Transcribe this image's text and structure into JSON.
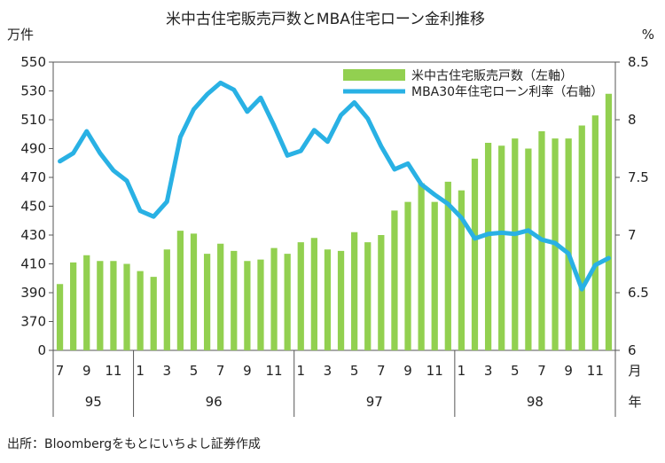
{
  "chart_data": {
    "type": "bar",
    "title": "米中古住宅販売戸数とMBA住宅ローン金利推移",
    "left_unit": "万件",
    "right_unit": "%",
    "x_unit_line1": "月",
    "x_unit_line2": "年",
    "source": "出所：Bloombergをもとにいちよし証券作成",
    "ylim_left": [
      0,
      550
    ],
    "left_tick_labels": [
      "0",
      "370",
      "390",
      "410",
      "430",
      "450",
      "470",
      "490",
      "510",
      "530",
      "550"
    ],
    "ylim_right": [
      6,
      8.5
    ],
    "right_tick_labels": [
      "6",
      "6.5",
      "7",
      "7.5",
      "8",
      "8.5"
    ],
    "month_labels": [
      "7",
      "9",
      "11",
      "1",
      "3",
      "5",
      "7",
      "9",
      "11",
      "1",
      "3",
      "5",
      "7",
      "9",
      "11",
      "1",
      "3",
      "5",
      "7",
      "9",
      "11"
    ],
    "year_labels": [
      "95",
      "96",
      "97",
      "98"
    ],
    "legend_position": "top-right",
    "grid": false,
    "series": [
      {
        "name": "米中古住宅販売戸数（左軸）",
        "type": "bar",
        "axis": "left",
        "color": "#92d050",
        "values": [
          396,
          411,
          416,
          412,
          412,
          410,
          405,
          401,
          420,
          433,
          431,
          417,
          424,
          419,
          412,
          413,
          421,
          417,
          425,
          428,
          420,
          419,
          432,
          425,
          430,
          447,
          453,
          466,
          453,
          467,
          461,
          483,
          494,
          492,
          497,
          490,
          502,
          497,
          497,
          506,
          513,
          528
        ]
      },
      {
        "name": "MBA30年住宅ローン利率（右軸）",
        "type": "line",
        "axis": "right",
        "color": "#29b1e4",
        "values": [
          7.64,
          7.71,
          7.9,
          7.71,
          7.56,
          7.47,
          7.21,
          7.16,
          7.29,
          7.85,
          8.09,
          8.22,
          8.32,
          8.26,
          8.07,
          8.19,
          7.95,
          7.69,
          7.73,
          7.91,
          7.81,
          8.04,
          8.15,
          8.01,
          7.77,
          7.57,
          7.62,
          7.44,
          7.35,
          7.27,
          7.15,
          6.97,
          7.01,
          7.02,
          7.01,
          7.04,
          6.96,
          6.93,
          6.84,
          6.53,
          6.74,
          6.8
        ]
      }
    ]
  }
}
